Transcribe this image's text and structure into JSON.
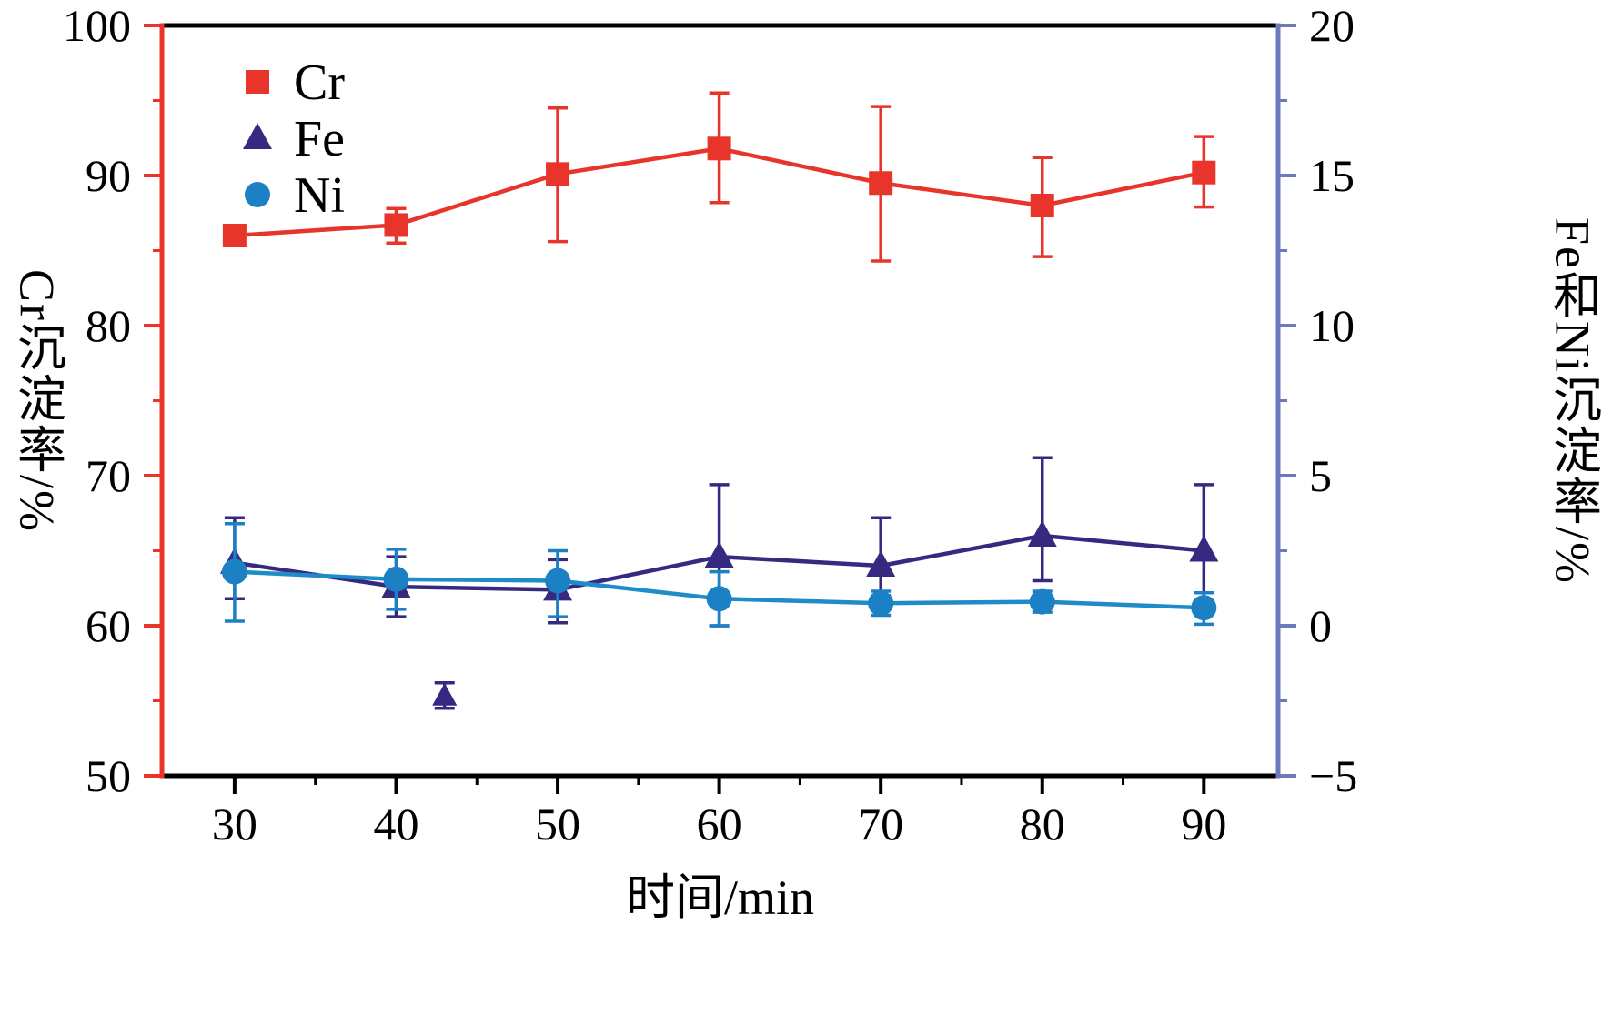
{
  "chart_data": {
    "type": "line",
    "title": "",
    "xlabel": "时间/min",
    "ylabel_left": "Cr沉淀率/%",
    "ylabel_right": "Fe和Ni沉淀率/%",
    "x": [
      30,
      40,
      50,
      60,
      70,
      80,
      90
    ],
    "x_ticks": [
      30,
      40,
      50,
      60,
      70,
      80,
      90
    ],
    "x_minor_ticks": [
      35,
      45,
      55,
      65,
      75,
      85
    ],
    "xlim": [
      25.5,
      94.6
    ],
    "ylim_left": [
      50,
      100
    ],
    "ylim_right": [
      -5,
      20
    ],
    "left_ticks": [
      50,
      60,
      70,
      80,
      90,
      100
    ],
    "left_minor_ticks": [
      55,
      65,
      75,
      85,
      95
    ],
    "right_ticks": [
      -5,
      0,
      5,
      10,
      15,
      20
    ],
    "right_minor_ticks": [
      -2.5,
      2.5,
      7.5,
      12.5,
      17.5
    ],
    "grid": false,
    "legend_position": "upper-left-inside",
    "axis_colors": {
      "left": "#e8352b",
      "right": "#6d79b8",
      "frame": "#000000"
    },
    "series": [
      {
        "name": "Cr",
        "axis": "left",
        "marker": "square",
        "color": "#e8352b",
        "values": [
          86.0,
          86.7,
          90.1,
          91.8,
          89.5,
          88.0,
          90.2
        ],
        "err_up": [
          0.3,
          1.1,
          4.4,
          3.7,
          5.1,
          3.2,
          2.4
        ],
        "err_down": [
          0.3,
          1.2,
          4.5,
          3.6,
          5.2,
          3.4,
          2.3
        ]
      },
      {
        "name": "Fe",
        "axis": "right",
        "marker": "triangle",
        "color": "#352a80",
        "values": [
          2.1,
          1.3,
          1.2,
          2.3,
          2.0,
          3.0,
          2.5
        ],
        "err_up": [
          1.5,
          1.0,
          1.0,
          2.4,
          1.6,
          2.6,
          2.2
        ],
        "err_down": [
          1.2,
          1.0,
          1.1,
          2.3,
          1.0,
          1.5,
          1.7
        ]
      },
      {
        "name": "Ni",
        "axis": "right",
        "marker": "circle",
        "color": "#1b80c4",
        "line_color": "#1e8cc8",
        "values": [
          1.8,
          1.55,
          1.5,
          0.9,
          0.75,
          0.8,
          0.6
        ],
        "err_up": [
          1.6,
          1.0,
          1.0,
          0.9,
          0.4,
          0.35,
          0.5
        ],
        "err_down": [
          1.65,
          1.0,
          1.2,
          0.9,
          0.4,
          0.35,
          0.55
        ]
      }
    ],
    "outlier_point": {
      "series": "Fe",
      "x": 43,
      "value": -2.35,
      "err_up": 0.45,
      "err_down": 0.4
    }
  }
}
